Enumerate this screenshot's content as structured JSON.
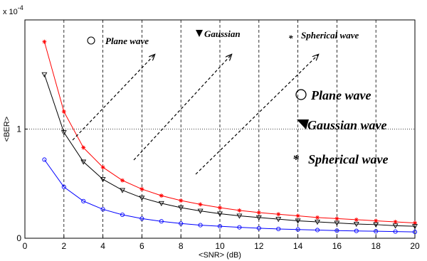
{
  "chart_data": {
    "type": "line",
    "title": "",
    "xlabel": "<SNR> (dB)",
    "ylabel": "<BER>",
    "y_exponent_label": "x 10",
    "y_exponent_power": "-4",
    "xlim": [
      0,
      20
    ],
    "ylim": [
      0,
      2.0
    ],
    "x_ticks": [
      "0",
      "2",
      "4",
      "6",
      "8",
      "10",
      "12",
      "14",
      "16",
      "18",
      "20"
    ],
    "y_ticks": [
      "0",
      "1"
    ],
    "grid": "vertical dashed every 2 dB, horizontal dotted at 1",
    "x": [
      1,
      2,
      3,
      4,
      5,
      6,
      7,
      8,
      9,
      10,
      11,
      12,
      13,
      14,
      15,
      16,
      17,
      18,
      19,
      20
    ],
    "series": [
      {
        "name": "Spherical wave",
        "color": "#ff0000",
        "marker": "star",
        "values": [
          1.8,
          1.16,
          0.83,
          0.65,
          0.53,
          0.45,
          0.39,
          0.345,
          0.31,
          0.28,
          0.255,
          0.235,
          0.22,
          0.205,
          0.19,
          0.18,
          0.17,
          0.16,
          0.15,
          0.14
        ]
      },
      {
        "name": "Gaussian wave",
        "color": "#000000",
        "marker": "triangle-down",
        "values": [
          1.5,
          0.97,
          0.7,
          0.54,
          0.44,
          0.37,
          0.32,
          0.28,
          0.25,
          0.225,
          0.205,
          0.19,
          0.175,
          0.16,
          0.15,
          0.14,
          0.13,
          0.125,
          0.115,
          0.11
        ]
      },
      {
        "name": "Plane wave",
        "color": "#0000ff",
        "marker": "circle",
        "values": [
          0.72,
          0.47,
          0.34,
          0.265,
          0.215,
          0.18,
          0.155,
          0.135,
          0.12,
          0.11,
          0.1,
          0.092,
          0.085,
          0.08,
          0.075,
          0.07,
          0.067,
          0.064,
          0.061,
          0.058
        ]
      }
    ]
  },
  "annotations": {
    "top_labels": [
      "Plane wave",
      "Gaussian",
      "Spherical wave"
    ],
    "legend_labels": [
      "Plane wave",
      "Gaussian wave",
      "Spherical wave"
    ],
    "arrow_style": "dashed diagonal arrows"
  }
}
